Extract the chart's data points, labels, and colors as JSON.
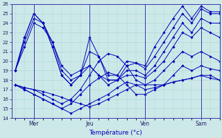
{
  "xlabel": "Température (°c)",
  "ylim": [
    14,
    26
  ],
  "yticks": [
    14,
    15,
    16,
    17,
    18,
    19,
    20,
    21,
    22,
    23,
    24,
    25,
    26
  ],
  "background_color": "#cce8e8",
  "line_color": "#0000bb",
  "grid_color": "#aad4d4",
  "day_labels": [
    "Mer",
    "Jeu",
    "Ven",
    "Sam"
  ],
  "day_positions": [
    0.25,
    1.0,
    1.75,
    2.5
  ],
  "xlim": [
    -0.05,
    2.75
  ],
  "series": [
    {
      "x": [
        0.0,
        0.125,
        0.25,
        0.375,
        0.5,
        0.625,
        0.75,
        0.875,
        1.0,
        1.125,
        1.25,
        1.375,
        1.5,
        1.625,
        1.75,
        1.875,
        2.0,
        2.125,
        2.25,
        2.375,
        2.5,
        2.625,
        2.75
      ],
      "y": [
        17.5,
        17.2,
        17.0,
        16.8,
        16.5,
        16.2,
        15.8,
        15.5,
        15.2,
        15.5,
        16.0,
        16.5,
        17.0,
        17.5,
        17.5,
        17.5,
        17.5,
        17.8,
        18.0,
        18.2,
        18.5,
        18.2,
        18.0
      ]
    },
    {
      "x": [
        0.0,
        0.125,
        0.25,
        0.375,
        0.5,
        0.625,
        0.75,
        0.875,
        1.0,
        1.125,
        1.25,
        1.375,
        1.5,
        1.625,
        1.75,
        1.875,
        2.0,
        2.125,
        2.25,
        2.375,
        2.5,
        2.625,
        2.75
      ],
      "y": [
        17.5,
        17.0,
        16.5,
        16.0,
        15.5,
        15.0,
        14.5,
        15.0,
        15.5,
        16.0,
        16.5,
        17.2,
        17.8,
        17.5,
        17.0,
        17.2,
        17.5,
        17.8,
        18.0,
        18.2,
        18.5,
        18.5,
        18.0
      ]
    },
    {
      "x": [
        0.0,
        0.125,
        0.25,
        0.375,
        0.5,
        0.625,
        0.75,
        0.875,
        1.0,
        1.125,
        1.25,
        1.375,
        1.5,
        1.625,
        1.75,
        1.875,
        2.0,
        2.125,
        2.25,
        2.375,
        2.5,
        2.625,
        2.75
      ],
      "y": [
        17.5,
        17.0,
        16.5,
        16.0,
        15.5,
        15.0,
        15.5,
        16.5,
        17.5,
        18.2,
        18.8,
        18.5,
        17.5,
        16.5,
        16.5,
        17.0,
        17.5,
        18.5,
        19.5,
        19.0,
        19.5,
        19.2,
        19.0
      ]
    },
    {
      "x": [
        0.0,
        0.125,
        0.25,
        0.375,
        0.5,
        0.625,
        0.75,
        0.875,
        1.0,
        1.125,
        1.25,
        1.375,
        1.5,
        1.625,
        1.75,
        1.875,
        2.0,
        2.125,
        2.25,
        2.375,
        2.5,
        2.625,
        2.75
      ],
      "y": [
        17.5,
        17.2,
        17.0,
        16.5,
        16.0,
        15.5,
        16.0,
        17.0,
        18.5,
        20.0,
        20.8,
        20.5,
        19.5,
        18.0,
        17.5,
        18.0,
        19.0,
        20.0,
        21.0,
        20.5,
        21.0,
        20.5,
        20.0
      ]
    },
    {
      "x": [
        0.0,
        0.125,
        0.25,
        0.375,
        0.5,
        0.625,
        0.75,
        0.875,
        1.0,
        1.125,
        1.25,
        1.375,
        1.5,
        1.625,
        1.75,
        1.875,
        2.0,
        2.125,
        2.25,
        2.375,
        2.5,
        2.625,
        2.75
      ],
      "y": [
        19.0,
        21.5,
        24.0,
        23.5,
        22.0,
        19.5,
        18.5,
        19.0,
        19.5,
        18.5,
        18.0,
        18.0,
        18.5,
        18.5,
        18.2,
        19.0,
        20.0,
        21.5,
        23.0,
        22.5,
        23.5,
        23.0,
        22.5
      ]
    },
    {
      "x": [
        0.0,
        0.125,
        0.25,
        0.375,
        0.5,
        0.625,
        0.75,
        0.875,
        1.0,
        1.125,
        1.25,
        1.375,
        1.5,
        1.625,
        1.75,
        1.875,
        2.0,
        2.125,
        2.25,
        2.375,
        2.5,
        2.625,
        2.75
      ],
      "y": [
        19.0,
        22.0,
        24.5,
        24.0,
        22.0,
        19.0,
        18.0,
        18.5,
        19.5,
        18.5,
        17.5,
        18.0,
        19.0,
        19.0,
        18.5,
        19.5,
        21.0,
        22.5,
        24.0,
        23.0,
        24.5,
        24.0,
        24.0
      ]
    },
    {
      "x": [
        0.0,
        0.125,
        0.25,
        0.375,
        0.5,
        0.625,
        0.75,
        0.875,
        1.0,
        1.125,
        1.25,
        1.375,
        1.5,
        1.625,
        1.75,
        1.875,
        2.0,
        2.125,
        2.25,
        2.375,
        2.5,
        2.625,
        2.75
      ],
      "y": [
        19.0,
        22.5,
        25.0,
        24.0,
        21.5,
        18.5,
        17.5,
        18.5,
        21.0,
        20.5,
        18.5,
        18.5,
        20.0,
        19.8,
        19.2,
        20.5,
        22.0,
        23.5,
        25.0,
        24.0,
        25.5,
        25.0,
        25.0
      ]
    },
    {
      "x": [
        0.0,
        0.125,
        0.25,
        0.375,
        0.5,
        0.625,
        0.75,
        0.875,
        1.0,
        1.125,
        1.25,
        1.375,
        1.5,
        1.625,
        1.75,
        1.875,
        2.0,
        2.125,
        2.25,
        2.375,
        2.5,
        2.625,
        2.75
      ],
      "y": [
        19.0,
        22.5,
        25.0,
        24.0,
        21.5,
        18.5,
        17.5,
        18.5,
        22.5,
        20.5,
        18.0,
        18.0,
        19.5,
        19.8,
        19.5,
        21.5,
        23.0,
        24.5,
        25.8,
        24.5,
        25.8,
        25.2,
        25.2
      ]
    }
  ]
}
